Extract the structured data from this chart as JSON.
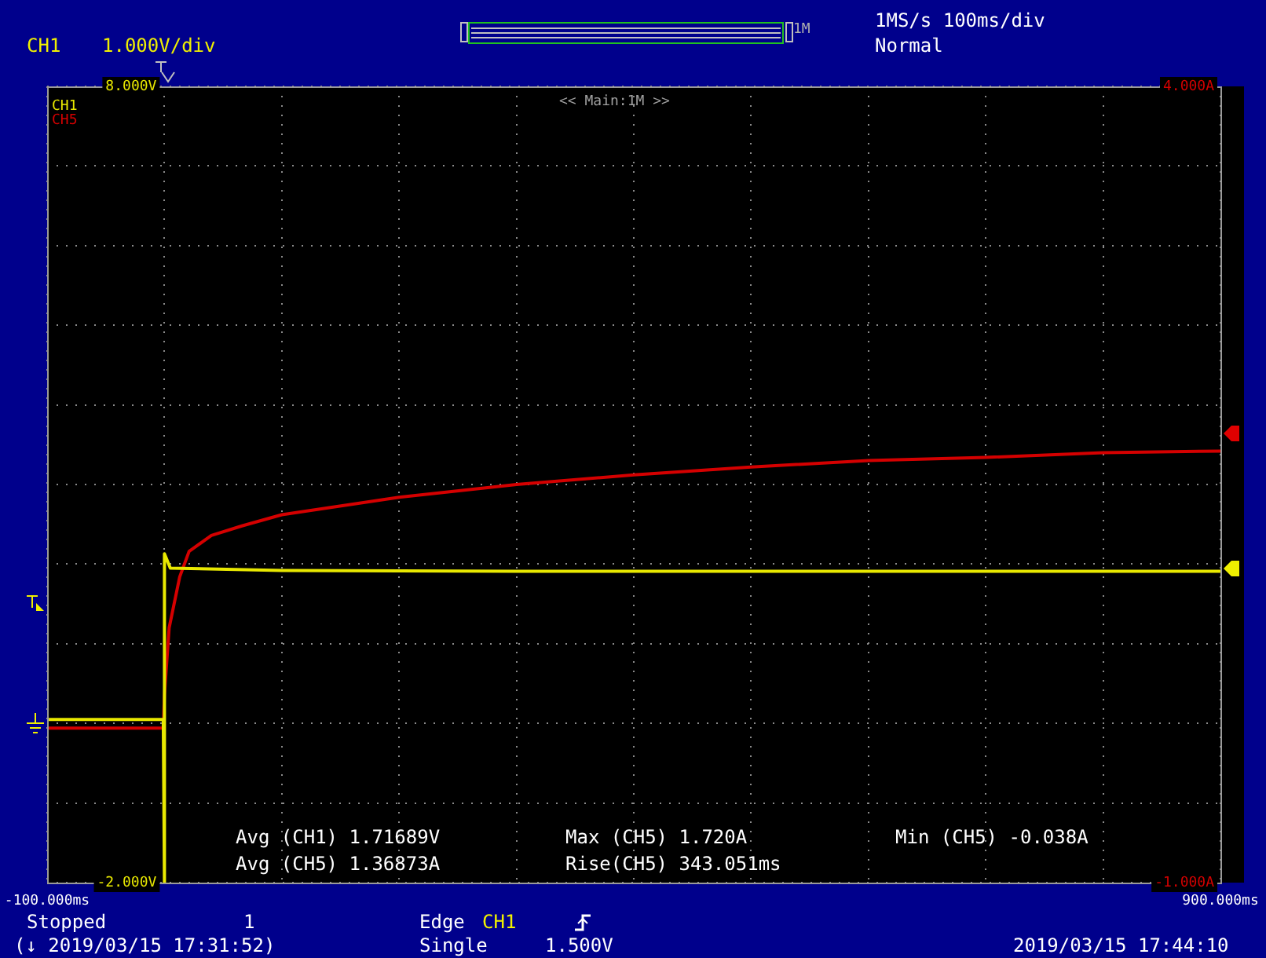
{
  "chart_data": {
    "type": "line",
    "xlim": [
      -100,
      900
    ],
    "xticks": [
      {
        "value": -100,
        "label": "-100.000ms"
      },
      {
        "value": 0,
        "label": null
      },
      {
        "value": 100,
        "label": null
      },
      {
        "value": 200,
        "label": null
      },
      {
        "value": 300,
        "label": null
      },
      {
        "value": 400,
        "label": null
      },
      {
        "value": 500,
        "label": null
      },
      {
        "value": 600,
        "label": null
      },
      {
        "value": 700,
        "label": null
      },
      {
        "value": 800,
        "label": null
      },
      {
        "value": 900,
        "label": "900.000ms"
      }
    ],
    "ylim": [
      -2,
      8
    ],
    "yticks": [
      {
        "value": -2,
        "label": "-2.000V"
      },
      {
        "value": -1,
        "label": null
      },
      {
        "value": 0,
        "label": null
      },
      {
        "value": 1,
        "label": null
      },
      {
        "value": 2,
        "label": null
      },
      {
        "value": 3,
        "label": null
      },
      {
        "value": 4,
        "label": null
      },
      {
        "value": 5,
        "label": null
      },
      {
        "value": 6,
        "label": null
      },
      {
        "value": 7,
        "label": null
      },
      {
        "value": 8,
        "label": "8.000V"
      }
    ],
    "y2lim": [
      -1,
      4
    ],
    "y2ticks": [
      {
        "value": -1,
        "label": "-1.000A"
      },
      {
        "value": 4,
        "label": "4.000A"
      }
    ],
    "grid": true,
    "legend": "top left",
    "series": [
      {
        "name": "CH1",
        "color": "#e8e800",
        "x": [
          -100,
          -1,
          0,
          0,
          5,
          100,
          300,
          600,
          900
        ],
        "values": [
          0.05,
          0.05,
          -2,
          2.13,
          1.95,
          1.92,
          1.91,
          1.91,
          1.91
        ]
      },
      {
        "name": "CH5",
        "color": "#d40000",
        "axis": "y2",
        "x": [
          -100,
          -1,
          0,
          4,
          13,
          21,
          40,
          66,
          100,
          200,
          300,
          400,
          500,
          600,
          700,
          800,
          900
        ],
        "values": [
          -0.03,
          -0.03,
          0.18,
          0.6,
          0.92,
          1.08,
          1.18,
          1.24,
          1.31,
          1.42,
          1.5,
          1.56,
          1.61,
          1.65,
          1.67,
          1.7,
          1.71
        ]
      }
    ],
    "annotations": [
      "CH1",
      "1.000V/div",
      "1M",
      "1MS/s 100ms/div",
      "Normal",
      "<< Main:1M >>",
      "Avg (CH1) 1.71689V",
      "Avg (CH5) 1.36873A",
      "Max (CH5) 1.720A",
      "Rise(CH5) 343.051ms",
      "Min (CH5) -0.038A",
      "Stopped",
      "1",
      "Edge",
      "CH1",
      "(↓ 2019/03/15 17:31:52)",
      "Single",
      "1.500V",
      "2019/03/15 17:44:10"
    ]
  }
}
